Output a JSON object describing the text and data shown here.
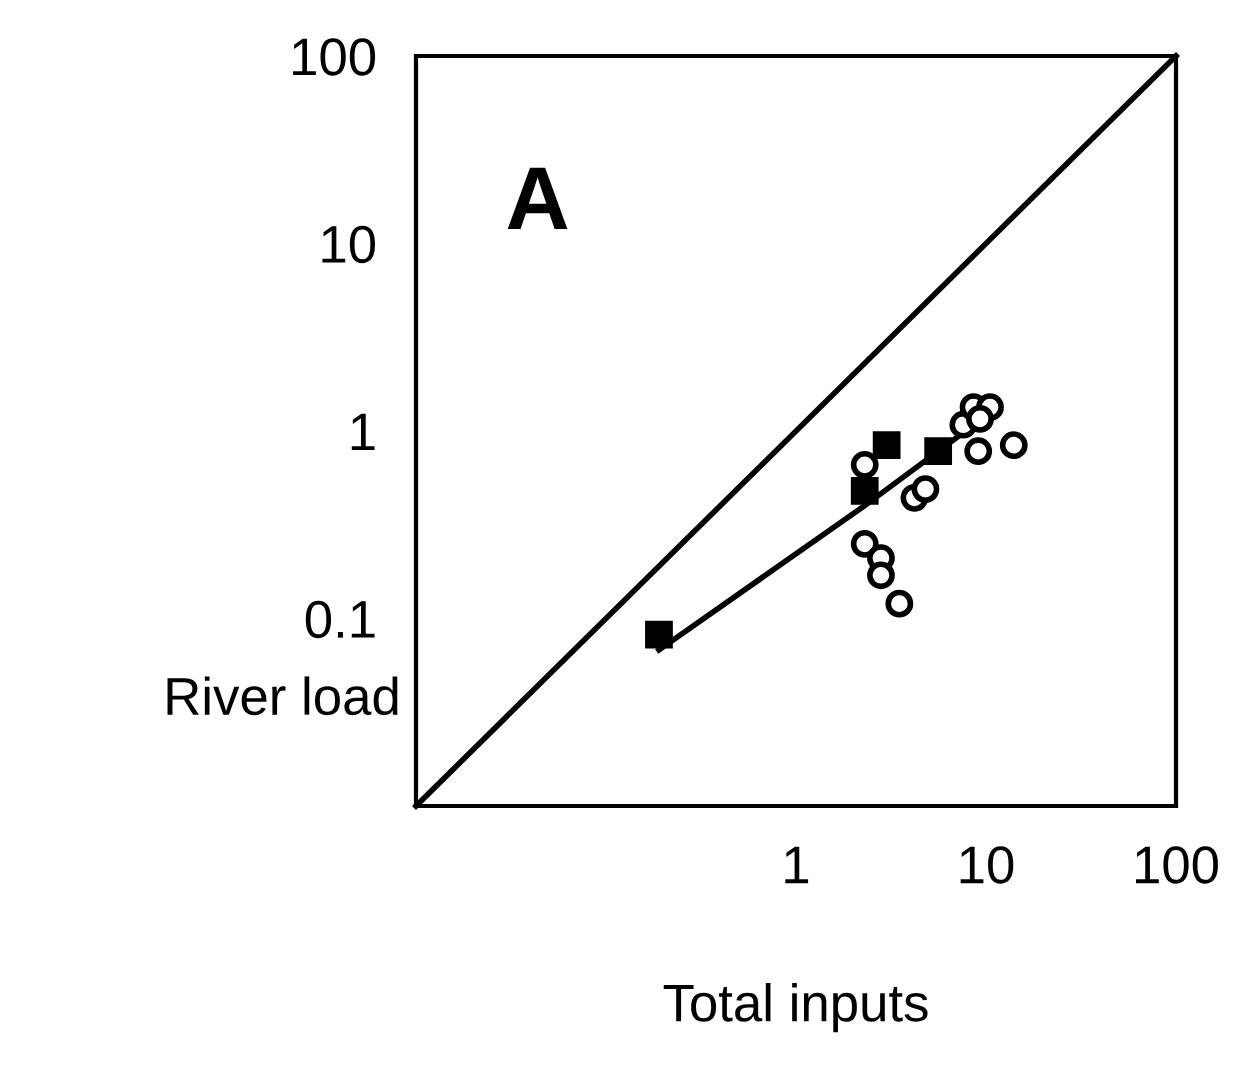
{
  "chart_data": {
    "type": "scatter",
    "xlabel": "Total inputs",
    "ylabel": "River load",
    "annotations": [
      "A"
    ],
    "log": "xy",
    "xlim": [
      0.01,
      100
    ],
    "ylim": [
      0.01,
      100
    ],
    "xticks": [
      1,
      10,
      100
    ],
    "yticks": [
      0.1,
      1,
      10,
      100
    ],
    "grid": false,
    "legend": false,
    "series": [
      {
        "type": "line",
        "color": "#000000",
        "marker": "none",
        "x": [
          0.01,
          100
        ],
        "values": [
          0.01,
          100
        ]
      },
      {
        "type": "line",
        "color": "#000000",
        "marker": "none",
        "x": [
          0.19,
          2.3,
          10.5
        ],
        "values": [
          0.068,
          0.4,
          1.25
        ]
      },
      {
        "color": "#000000",
        "marker": "square",
        "x": [
          0.19,
          2.3,
          3.0,
          5.6
        ],
        "values": [
          0.082,
          0.48,
          0.84,
          0.78
        ]
      },
      {
        "color": "#ffffff",
        "marker": "circle",
        "x": [
          2.3,
          4.2,
          4.8,
          2.3,
          2.8,
          2.8,
          3.5,
          7.6,
          8.6,
          10.5,
          9.3,
          9.1,
          14
        ],
        "values": [
          0.66,
          0.44,
          0.49,
          0.25,
          0.21,
          0.17,
          0.12,
          1.08,
          1.34,
          1.34,
          1.16,
          0.78,
          0.84
        ]
      }
    ]
  }
}
